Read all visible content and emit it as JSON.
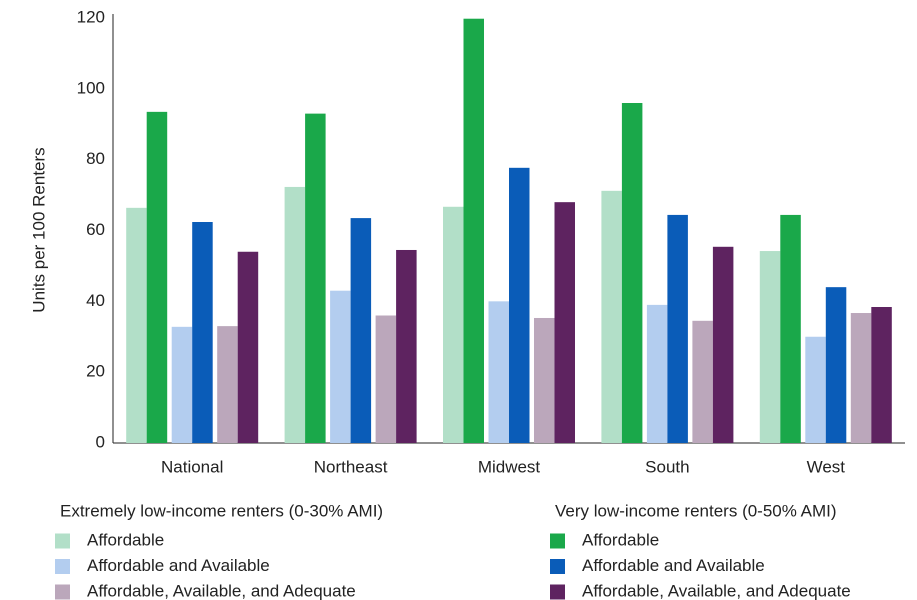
{
  "chart_data": {
    "type": "bar",
    "y_label": "Units per 100 Renters",
    "categories": [
      "National",
      "Northeast",
      "Midwest",
      "South",
      "West"
    ],
    "ylim": [
      0,
      120
    ],
    "yticks": [
      0,
      20,
      40,
      60,
      80,
      100,
      120
    ],
    "grid": false,
    "series_groups": [
      {
        "title": "Extremely low-income renters (0-30% AMI)",
        "series": [
          {
            "name": "Affordable",
            "color": "#b2dfc8",
            "values": [
              66.4,
              72.3,
              66.7,
              71.2,
              54.2
            ]
          },
          {
            "name": "Affordable and Available",
            "color": "#b3cdef",
            "values": [
              32.8,
              43,
              40,
              39,
              30
            ]
          },
          {
            "name": "Affordable, Available, and Adequate",
            "color": "#bba7bb",
            "values": [
              33,
              36,
              35.3,
              34.5,
              36.7
            ]
          }
        ]
      },
      {
        "title": "Very low-income renters (0-50% AMI)",
        "series": [
          {
            "name": "Affordable",
            "color": "#1aa84a",
            "values": [
              93.5,
              93,
              119.8,
              96,
              64.4
            ]
          },
          {
            "name": "Affordable and Available",
            "color": "#0a5cb8",
            "values": [
              62.4,
              63.5,
              77.7,
              64.4,
              44
            ]
          },
          {
            "name": "Affordable, Available, and Adequate",
            "color": "#5e2360",
            "values": [
              54,
              54.5,
              68,
              55.4,
              38.4
            ]
          }
        ]
      }
    ]
  }
}
